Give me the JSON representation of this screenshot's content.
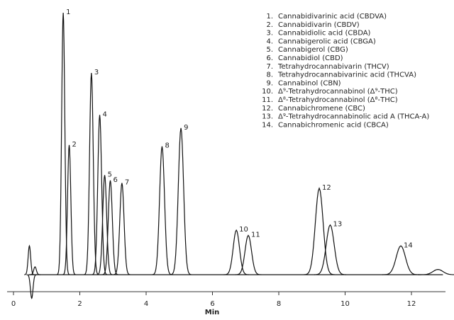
{
  "chart_data": {
    "type": "chromatogram",
    "x_label": "Min",
    "xlim": [
      0,
      13
    ],
    "xticks": [
      0,
      2,
      4,
      6,
      8,
      10,
      12
    ],
    "ylim": [
      -10,
      100
    ],
    "color": "#111111",
    "peaks": {
      "labels": [
        null,
        null,
        null,
        "1",
        "2",
        "3",
        "4",
        "5",
        "6",
        "7",
        "8",
        "9",
        "10",
        "11",
        "12",
        "13",
        "14",
        null
      ],
      "x": [
        0.48,
        0.55,
        0.65,
        1.5,
        1.68,
        2.35,
        2.6,
        2.75,
        2.92,
        3.27,
        4.48,
        5.05,
        6.72,
        7.08,
        9.22,
        9.55,
        11.68,
        12.8
      ],
      "values": [
        11,
        -9,
        3,
        100,
        49.5,
        77,
        61,
        38,
        36,
        35,
        49,
        56,
        17,
        15,
        33,
        19,
        11,
        2
      ]
    },
    "legend": [
      {
        "number": "1.",
        "name": "Cannabidivarinic acid (CBDVA)"
      },
      {
        "number": "2.",
        "name": "Cannabidivarin (CBDV)"
      },
      {
        "number": "3.",
        "name": "Cannabidiolic acid (CBDA)"
      },
      {
        "number": "4.",
        "name": "Cannabigerolic acid (CBGA)"
      },
      {
        "number": "5.",
        "name": "Cannabigerol (CBG)"
      },
      {
        "number": "6.",
        "name": "Cannabidiol (CBD)"
      },
      {
        "number": "7.",
        "name": "Tetrahydrocannabivarin (THCV)"
      },
      {
        "number": "8.",
        "name": "Tetrahydrocannabivarinic acid (THCVA)"
      },
      {
        "number": "9.",
        "name": "Cannabinol (CBN)"
      },
      {
        "number": "10.",
        "name": "Δ⁹-Tetrahydrocannabinol (Δ⁹-THC)"
      },
      {
        "number": "11.",
        "name": "Δ⁸-Tetrahydrocannabinol (Δ⁸-THC)"
      },
      {
        "number": "12.",
        "name": "Cannabichromene (CBC)"
      },
      {
        "number": "13.",
        "name": "Δ⁹-Tetrahydrocannabinolic acid A (THCA-A)"
      },
      {
        "number": "14.",
        "name": "Cannabichromenic acid (CBCA)"
      }
    ]
  }
}
